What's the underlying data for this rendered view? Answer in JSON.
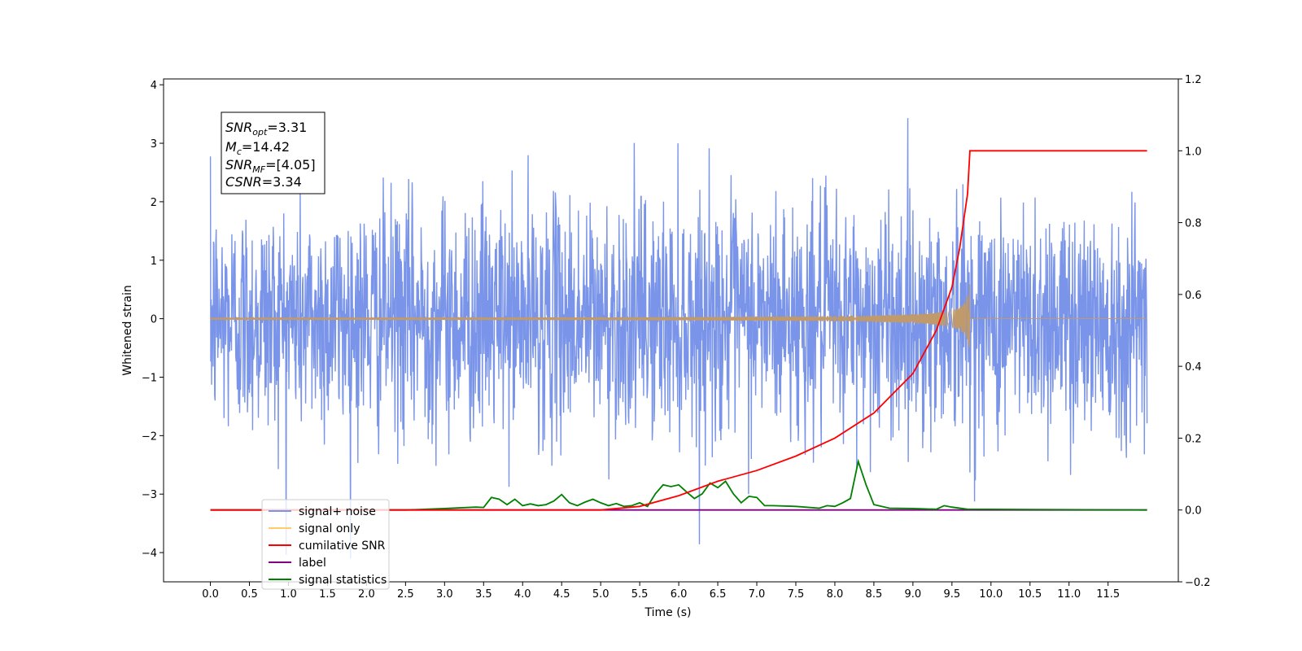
{
  "chart_data": {
    "type": "line",
    "title": "",
    "xlabel": "Time (s)",
    "ylabel": "Whitened strain",
    "y2label": "",
    "xlim": [
      -0.6,
      12.4
    ],
    "ylim": [
      -4.5,
      4.1
    ],
    "y2lim": [
      -0.2,
      1.2
    ],
    "grid": false,
    "legend_placement": "lower-left",
    "x_ticks": [
      "0.0",
      "0.5",
      "1.0",
      "1.5",
      "2.0",
      "2.5",
      "3.0",
      "3.5",
      "4.0",
      "4.5",
      "5.0",
      "5.5",
      "6.0",
      "6.5",
      "7.0",
      "7.5",
      "8.0",
      "8.5",
      "9.0",
      "9.5",
      "10.0",
      "10.5",
      "11.0",
      "11.5"
    ],
    "y_ticks": [
      "4",
      "3",
      "2",
      "1",
      "0",
      "−1",
      "−2",
      "−3",
      "−4"
    ],
    "y2_ticks": [
      "1.2",
      "1.0",
      "0.8",
      "0.6",
      "0.4",
      "0.2",
      "0.0",
      "−0.2"
    ],
    "annotation": {
      "snr_opt": {
        "sym": "SNR",
        "sub": "opt",
        "val": "=3.31"
      },
      "mc": {
        "sym": "M",
        "sub": "c",
        "val": "=14.42"
      },
      "snr_mf": {
        "sym": "SNR",
        "sub": "MF",
        "val": "=[4.05]"
      },
      "csnr": {
        "sym": "CSNR",
        "sub": "",
        "val": "=3.34"
      }
    },
    "series": [
      {
        "name": "signal+ noise",
        "color": "#7994e8",
        "axis": "left",
        "x_range": [
          0.0,
          12.0
        ],
        "amplitude_std": 1.0,
        "min": -4.1,
        "max": 3.75
      },
      {
        "name": "signal only",
        "color": "#ffcc66",
        "axis": "left",
        "x_range": [
          0.0,
          12.0
        ],
        "chirp_peak_time": 9.73,
        "chirp_peak_amplitude": 0.68
      },
      {
        "name": "cumilative SNR",
        "color": "#ff0000",
        "axis": "right",
        "x": [
          0.0,
          5.0,
          5.5,
          6.0,
          6.5,
          7.0,
          7.5,
          8.0,
          8.5,
          9.0,
          9.3,
          9.5,
          9.6,
          9.7,
          9.73,
          12.0
        ],
        "y": [
          0.0,
          0.0,
          0.01,
          0.04,
          0.08,
          0.11,
          0.15,
          0.2,
          0.27,
          0.38,
          0.5,
          0.62,
          0.73,
          0.88,
          1.0,
          1.0
        ]
      },
      {
        "name": "label",
        "color": "#800080",
        "axis": "right",
        "x": [
          0.0,
          12.0
        ],
        "y": [
          0.0,
          0.0
        ]
      },
      {
        "name": "signal statistics",
        "color": "#008000",
        "axis": "right",
        "x": [
          0.0,
          2.5,
          3.0,
          3.4,
          3.5,
          3.6,
          3.7,
          3.8,
          3.9,
          4.0,
          4.1,
          4.2,
          4.3,
          4.4,
          4.5,
          4.6,
          4.7,
          4.8,
          4.9,
          5.0,
          5.1,
          5.2,
          5.3,
          5.4,
          5.5,
          5.6,
          5.7,
          5.8,
          5.9,
          6.0,
          6.1,
          6.2,
          6.3,
          6.4,
          6.5,
          6.6,
          6.7,
          6.8,
          6.9,
          7.0,
          7.1,
          7.2,
          7.5,
          7.8,
          7.9,
          8.0,
          8.1,
          8.2,
          8.3,
          8.4,
          8.5,
          8.7,
          9.0,
          9.3,
          9.4,
          9.5,
          9.7,
          12.0
        ],
        "y": [
          0.0,
          0.0,
          0.004,
          0.008,
          0.007,
          0.035,
          0.03,
          0.015,
          0.03,
          0.012,
          0.017,
          0.012,
          0.015,
          0.025,
          0.043,
          0.02,
          0.012,
          0.022,
          0.03,
          0.02,
          0.012,
          0.018,
          0.01,
          0.012,
          0.02,
          0.01,
          0.045,
          0.07,
          0.065,
          0.07,
          0.05,
          0.032,
          0.045,
          0.075,
          0.062,
          0.08,
          0.045,
          0.02,
          0.038,
          0.035,
          0.012,
          0.012,
          0.01,
          0.005,
          0.012,
          0.01,
          0.02,
          0.032,
          0.135,
          0.07,
          0.015,
          0.005,
          0.004,
          0.002,
          0.012,
          0.008,
          0.002,
          0.0
        ]
      }
    ],
    "legend_order": [
      "signal+ noise",
      "signal only",
      "cumilative SNR",
      "label",
      "signal statistics"
    ]
  }
}
